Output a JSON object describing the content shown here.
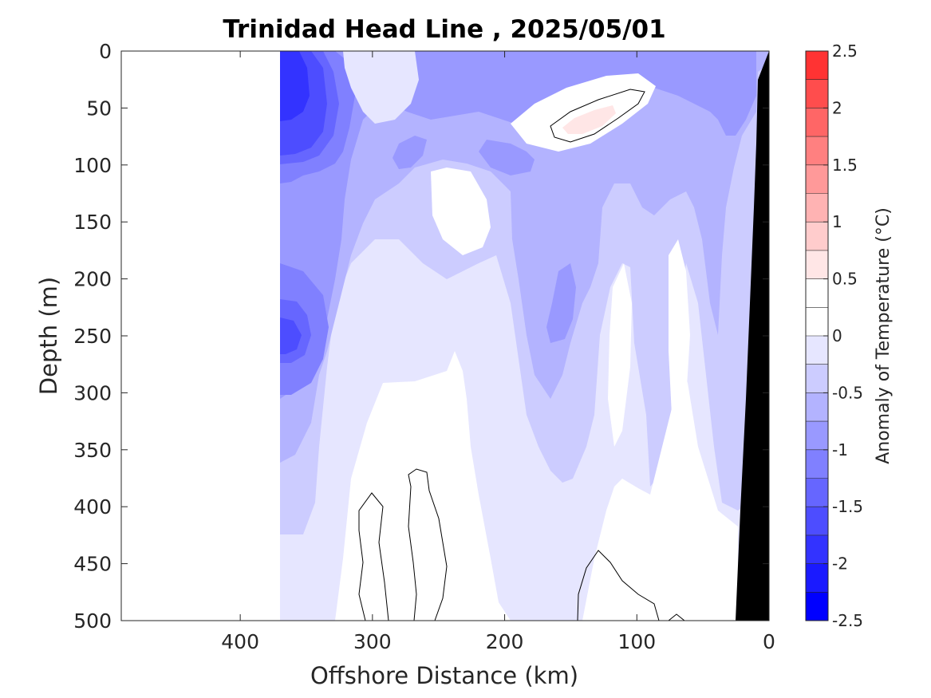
{
  "chart_data": {
    "type": "contour",
    "title": "Trinidad Head Line , 2025/05/01",
    "xlabel": "Offshore Distance (km)",
    "ylabel": "Depth (m)",
    "xlim": [
      490,
      0
    ],
    "ylim": [
      500,
      0
    ],
    "x_reversed": true,
    "y_reversed": true,
    "x_ticks": [
      400,
      300,
      200,
      100,
      0
    ],
    "x_tick_labels": [
      "400",
      "300",
      "200",
      "100",
      "0"
    ],
    "y_ticks": [
      0,
      50,
      100,
      150,
      200,
      250,
      300,
      350,
      400,
      450,
      500
    ],
    "y_tick_labels": [
      "0",
      "50",
      "100",
      "150",
      "200",
      "250",
      "300",
      "350",
      "400",
      "450",
      "500"
    ],
    "data_extent_x": [
      370,
      0
    ],
    "colorbar": {
      "label": "Anomaly of Temperature (°C)",
      "range": [
        -2.5,
        2.5
      ],
      "ticks": [
        2.5,
        2,
        1.5,
        1,
        0.5,
        0,
        -0.5,
        -1,
        -1.5,
        -2,
        -2.5
      ],
      "tick_labels": [
        "2.5",
        "2",
        "1.5",
        "1",
        "0.5",
        "0",
        "-0.5",
        "-1",
        "-1.5",
        "-2",
        "-2.5"
      ],
      "levels": [
        -2.5,
        -2.25,
        -2,
        -1.75,
        -1.5,
        -1.25,
        -1,
        -0.75,
        -0.5,
        -0.25,
        0,
        0.25,
        0.5,
        0.75,
        1,
        1.25,
        1.5,
        1.75,
        2,
        2.25,
        2.5
      ],
      "colors_bottom_to_top": [
        "#0000ff",
        "#1a1aff",
        "#3333ff",
        "#4d4dff",
        "#6666ff",
        "#8080ff",
        "#9999ff",
        "#b3b3ff",
        "#ccccff",
        "#e6e6ff",
        "#ffffff",
        "#ffffff",
        "#ffe6e6",
        "#ffcccc",
        "#ffb3b3",
        "#ff9999",
        "#ff8080",
        "#ff6666",
        "#ff4d4d",
        "#ff3333",
        "#ff1a1a"
      ]
    },
    "features": [
      {
        "name": "near-surface cold core",
        "x_range": [
          370,
          330
        ],
        "depth_range": [
          0,
          110
        ],
        "anomaly": -1.75
      },
      {
        "name": "subsurface cold core",
        "x_range": [
          370,
          330
        ],
        "depth_range": [
          210,
          280
        ],
        "anomaly": -1.5
      },
      {
        "name": "warm lens",
        "x_range": [
          165,
          95
        ],
        "depth_range": [
          30,
          85
        ],
        "anomaly": 0.5
      },
      {
        "name": "near-zero region",
        "x_range": [
          310,
          180
        ],
        "depth_range": [
          270,
          500
        ],
        "anomaly": 0
      }
    ],
    "grid": false,
    "bathymetry_color": "#000000"
  }
}
